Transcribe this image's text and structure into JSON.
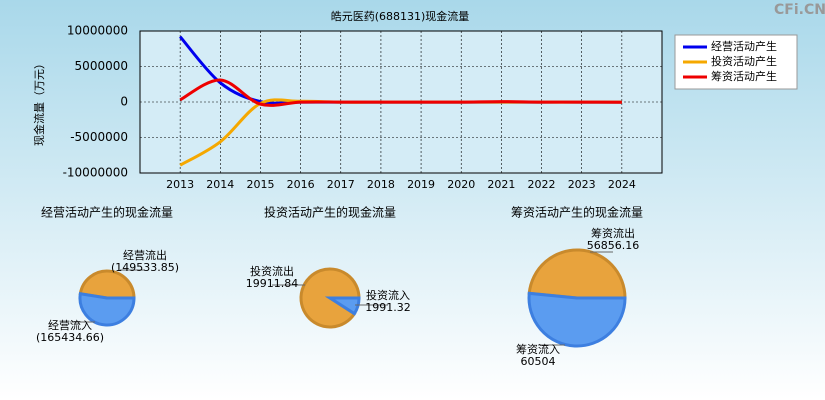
{
  "watermark": "CFi.CN",
  "chart_data": [
    {
      "type": "line",
      "title": "皓元医药(688131)现金流量",
      "y_label": "现金流量（万元）",
      "x": [
        2013,
        2014,
        2015,
        2016,
        2017,
        2018,
        2019,
        2020,
        2021,
        2022,
        2023,
        2024
      ],
      "xlim": [
        2012,
        2025
      ],
      "xticks": [
        2013,
        2014,
        2015,
        2016,
        2017,
        2018,
        2019,
        2020,
        2021,
        2022,
        2023,
        2024
      ],
      "ylim": [
        -10000000,
        10000000
      ],
      "yticks": [
        10000000,
        5000000,
        0,
        -5000000,
        -10000000
      ],
      "grid": true,
      "legend": "top-right",
      "series": [
        {
          "name": "经营活动产生",
          "color": "#0000ee",
          "values": [
            9200000,
            2700000,
            50000,
            -20000,
            -10000,
            -10000,
            -10000,
            -10000,
            -20000,
            -10000,
            -10000,
            -20000
          ]
        },
        {
          "name": "投资活动产生",
          "color": "#f5a800",
          "values": [
            -8900000,
            -5600000,
            -200000,
            100000,
            -20000,
            -20000,
            -10000,
            -20000,
            -10000,
            -20000,
            -10000,
            -20000
          ]
        },
        {
          "name": "筹资活动产生",
          "color": "#ee0000",
          "values": [
            300000,
            3100000,
            -300000,
            -20000,
            -10000,
            -10000,
            -10000,
            -10000,
            60000,
            -10000,
            -10000,
            -30000
          ]
        }
      ]
    },
    {
      "type": "pie",
      "title": "经营活动产生的现金流量",
      "categories": [
        "经营流出",
        "经营流入"
      ],
      "values": [
        149533.85,
        165434.66
      ],
      "value_labels": [
        "(149533.85)",
        "(165434.66)"
      ],
      "colors": [
        "#e8a33d",
        "#5b9cf0"
      ]
    },
    {
      "type": "pie",
      "title": "投资活动产生的现金流量",
      "categories": [
        "投资流出",
        "投资流入"
      ],
      "values": [
        19911.84,
        1991.32
      ],
      "value_labels": [
        "19911.84",
        "1991.32"
      ],
      "colors": [
        "#e8a33d",
        "#5b9cf0"
      ]
    },
    {
      "type": "pie",
      "title": "筹资活动产生的现金流量",
      "categories": [
        "筹资流出",
        "筹资流入"
      ],
      "values": [
        56856.16,
        60504
      ],
      "value_labels": [
        "56856.16",
        "60504"
      ],
      "colors": [
        "#e8a33d",
        "#5b9cf0"
      ]
    }
  ]
}
